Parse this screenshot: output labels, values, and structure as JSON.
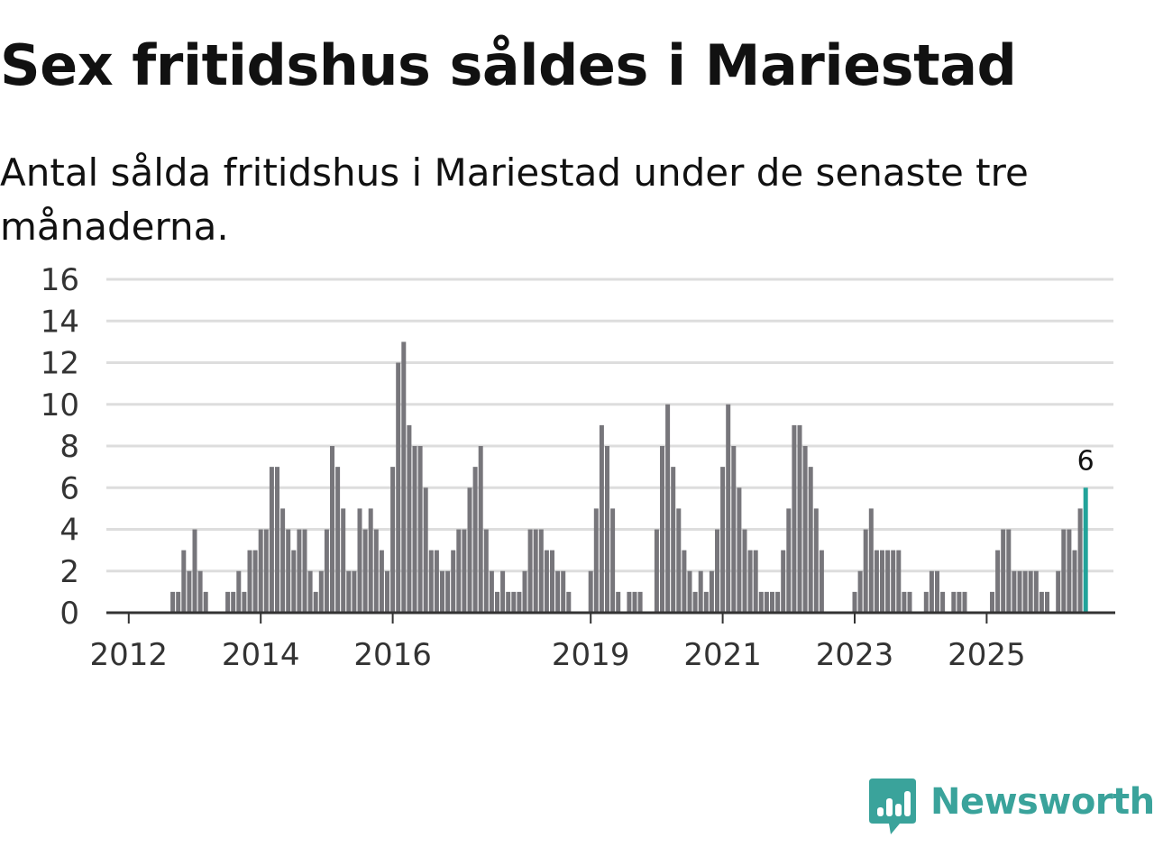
{
  "title": "Sex fritidshus såldes i Mariestad",
  "subtitle": "Antal sålda fritidshus i Mariestad under de senaste tre månaderna.",
  "brand": {
    "name": "Newsworthy",
    "color": "#3aa39b"
  },
  "colors": {
    "bar": "#77767b",
    "highlight": "#22a39a",
    "grid": "#dddddd",
    "axis": "#333333"
  },
  "chart_data": {
    "type": "bar",
    "title": "Sex fritidshus såldes i Mariestad",
    "xlabel": "",
    "ylabel": "",
    "ylim": [
      0,
      16
    ],
    "y_ticks": [
      0,
      2,
      4,
      6,
      8,
      10,
      12,
      14,
      16
    ],
    "grid": true,
    "x_start": "2011-10",
    "x_ticks": [
      {
        "label": "2012",
        "month": "2012-01"
      },
      {
        "label": "2014",
        "month": "2014-01"
      },
      {
        "label": "2016",
        "month": "2016-01"
      },
      {
        "label": "2019",
        "month": "2019-01"
      },
      {
        "label": "2021",
        "month": "2021-01"
      },
      {
        "label": "2023",
        "month": "2023-01"
      },
      {
        "label": "2025",
        "month": "2025-01"
      }
    ],
    "values": [
      0,
      0,
      0,
      0,
      0,
      0,
      0,
      0,
      0,
      0,
      0,
      1,
      1,
      3,
      2,
      4,
      2,
      1,
      0,
      0,
      0,
      1,
      1,
      2,
      1,
      3,
      3,
      4,
      4,
      7,
      7,
      5,
      4,
      3,
      4,
      4,
      2,
      1,
      2,
      4,
      8,
      7,
      5,
      2,
      2,
      5,
      4,
      5,
      4,
      3,
      2,
      7,
      12,
      13,
      9,
      8,
      8,
      6,
      3,
      3,
      2,
      2,
      3,
      4,
      4,
      6,
      7,
      8,
      4,
      2,
      1,
      2,
      1,
      1,
      1,
      2,
      4,
      4,
      4,
      3,
      3,
      2,
      2,
      1,
      0,
      0,
      0,
      2,
      5,
      9,
      8,
      5,
      1,
      0,
      1,
      1,
      1,
      0,
      0,
      4,
      8,
      10,
      7,
      5,
      3,
      2,
      1,
      2,
      1,
      2,
      4,
      7,
      10,
      8,
      6,
      4,
      3,
      3,
      1,
      1,
      1,
      1,
      3,
      5,
      9,
      9,
      8,
      7,
      5,
      3,
      0,
      0,
      0,
      0,
      0,
      1,
      2,
      4,
      5,
      3,
      3,
      3,
      3,
      3,
      1,
      1,
      0,
      0,
      1,
      2,
      2,
      1,
      0,
      1,
      1,
      1,
      0,
      0,
      0,
      0,
      1,
      3,
      4,
      4,
      2,
      2,
      2,
      2,
      2,
      1,
      1,
      0,
      2,
      4,
      4,
      3,
      5,
      6
    ],
    "highlight_label": "6"
  }
}
